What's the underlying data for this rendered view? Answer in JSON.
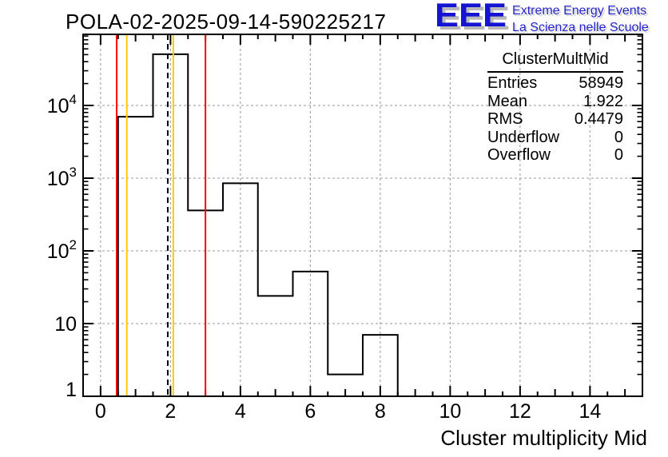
{
  "logo": {
    "eee": "EEE",
    "line1": "Extreme Energy Events",
    "line2": "La Scienza nelle Scuole",
    "blue": "#1414d2"
  },
  "stats": {
    "title": "ClusterMultMid",
    "rows": [
      {
        "label": "Entries",
        "value": "58949"
      },
      {
        "label": "Mean",
        "value": "1.922"
      },
      {
        "label": "RMS",
        "value": "0.4479"
      },
      {
        "label": "Underflow",
        "value": "0"
      },
      {
        "label": "Overflow",
        "value": "0"
      }
    ]
  },
  "chart_data": {
    "type": "bar",
    "title": "POLA-02-2025-09-14-590225217",
    "xlabel": "Cluster multiplicity Mid",
    "ylabel": "",
    "x_range": [
      -0.5,
      15.5
    ],
    "y_range": [
      1,
      95000
    ],
    "y_scale": "log",
    "grid": true,
    "legend": "none",
    "bin_width": 1,
    "bin_centers": [
      1,
      2,
      3,
      4,
      5,
      6,
      7,
      8
    ],
    "values": [
      7000,
      50650,
      360,
      850,
      24,
      52,
      2,
      7
    ],
    "x_tick_labels": [
      "0",
      "2",
      "4",
      "6",
      "8",
      "10",
      "12",
      "14"
    ],
    "x_tick_values": [
      0,
      2,
      4,
      6,
      8,
      10,
      12,
      14
    ],
    "y_tick_labels": [
      {
        "base": "1",
        "exp": "",
        "value": 1
      },
      {
        "base": "10",
        "exp": "",
        "value": 10
      },
      {
        "base": "10",
        "exp": "2",
        "value": 100
      },
      {
        "base": "10",
        "exp": "3",
        "value": 1000
      },
      {
        "base": "10",
        "exp": "4",
        "value": 10000
      }
    ],
    "marker_lines": [
      {
        "name": "red-low-threshold",
        "x": 0.46,
        "color": "#ff0000",
        "style": "solid"
      },
      {
        "name": "yellow-low-threshold",
        "x": 0.75,
        "color": "#ffcc00",
        "style": "solid"
      },
      {
        "name": "mean-line",
        "x": 1.922,
        "color": "#000000",
        "style": "dashed"
      },
      {
        "name": "yellow-high-threshold",
        "x": 2.08,
        "color": "#ffcc00",
        "style": "solid"
      },
      {
        "name": "red-high-threshold",
        "x": 3.0,
        "color": "#ff0000",
        "style": "solid"
      }
    ],
    "colors": {
      "histogram": "#000000",
      "grid": "#999999",
      "frame": "#000000"
    }
  }
}
